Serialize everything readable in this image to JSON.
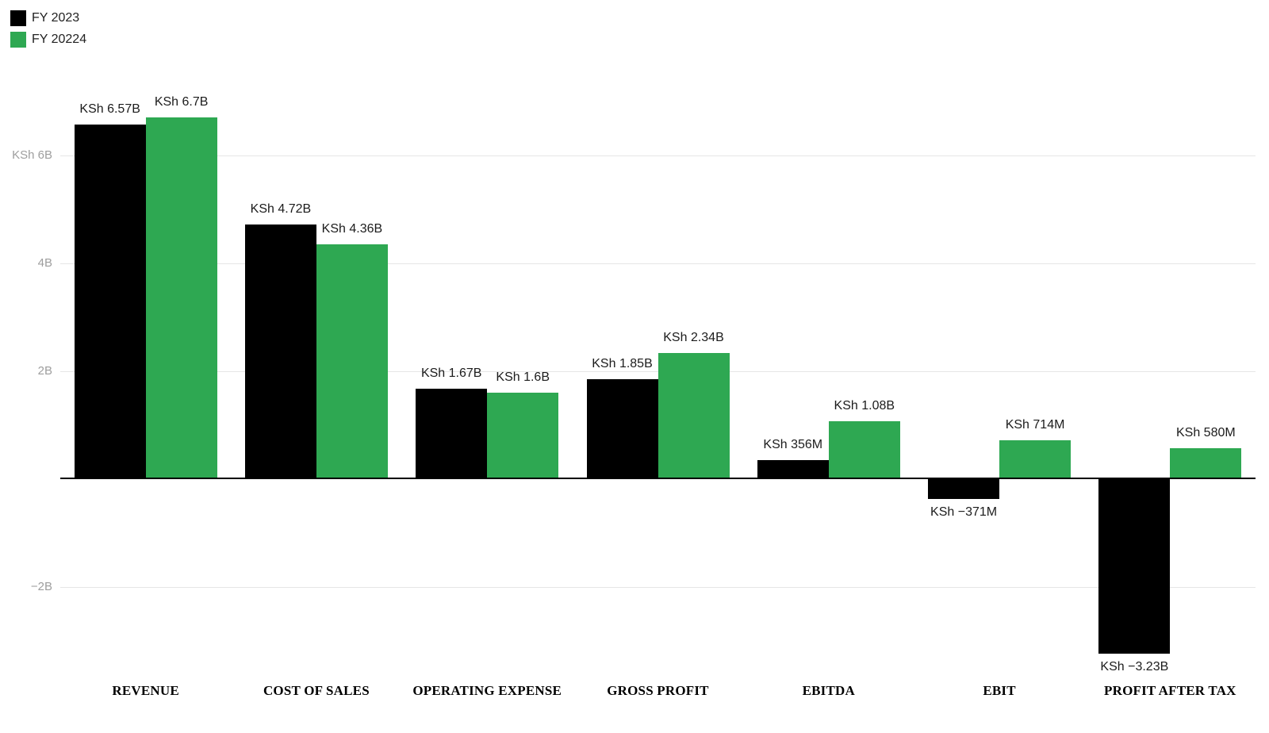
{
  "legend": {
    "items": [
      {
        "label": "FY 2023",
        "color": "#000000"
      },
      {
        "label": "FY 20224",
        "color": "#2ea852"
      }
    ]
  },
  "chart_data": {
    "type": "bar",
    "title": "",
    "currency": "KSh",
    "legend_position": "top-left",
    "grid": true,
    "categories": [
      "REVENUE",
      "COST OF SALES",
      "OPERATING EXPENSE",
      "GROSS PROFIT",
      "EBITDA",
      "EBIT",
      "PROFIT AFTER TAX"
    ],
    "series": [
      {
        "name": "FY 2023",
        "color": "#000000",
        "values_billions": [
          6.57,
          4.72,
          1.67,
          1.85,
          0.356,
          -0.371,
          -3.23
        ],
        "value_labels": [
          "KSh 6.57B",
          "KSh 4.72B",
          "KSh 1.67B",
          "KSh 1.85B",
          "KSh 356M",
          "KSh −371M",
          "KSh −3.23B"
        ]
      },
      {
        "name": "FY 20224",
        "color": "#2ea852",
        "values_billions": [
          6.7,
          4.36,
          1.6,
          2.34,
          1.08,
          0.714,
          0.58
        ],
        "value_labels": [
          "KSh 6.7B",
          "KSh 4.36B",
          "KSh 1.6B",
          "KSh 2.34B",
          "KSh 1.08B",
          "KSh 714M",
          "KSh 580M"
        ]
      }
    ],
    "y_axis": {
      "ylim": [
        -3.6,
        7.0
      ],
      "baseline_value": 0,
      "ticks": [
        {
          "value": 6,
          "label": "KSh 6B"
        },
        {
          "value": 4,
          "label": "4B"
        },
        {
          "value": 2,
          "label": "2B"
        },
        {
          "value": -2,
          "label": "−2B"
        }
      ]
    },
    "colors": {
      "gridline": "#e6e6e6",
      "axis_line": "#000000",
      "tick_text": "#9e9e9e",
      "value_text": "#1c1c1c",
      "category_text": "#000000"
    }
  }
}
